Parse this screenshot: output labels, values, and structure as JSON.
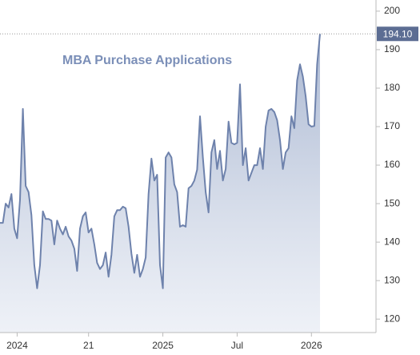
{
  "chart_data": {
    "type": "area",
    "title": "MBA Purchase Applications",
    "color": "#6e82ac",
    "values": [
      145,
      145,
      150,
      149,
      152.5,
      143.5,
      141,
      151,
      174.6,
      154.6,
      153,
      147,
      134,
      128,
      134,
      148,
      146,
      146,
      145.6,
      139.4,
      145.6,
      143.5,
      142,
      144,
      141.5,
      140.4,
      138.3,
      132.5,
      143.5,
      146.7,
      147.7,
      142.5,
      143.5,
      139.4,
      134.6,
      133,
      134,
      137.3,
      131,
      136.7,
      146.7,
      148.3,
      148.3,
      149.2,
      148.8,
      144,
      137,
      132,
      136.7,
      131,
      133,
      136,
      152.5,
      161.7,
      156,
      157.5,
      134,
      128,
      162,
      163.3,
      162,
      155,
      153,
      144,
      144.4,
      144,
      154,
      154.6,
      156,
      158.8,
      172.7,
      162,
      153,
      147.7,
      163.3,
      166.5,
      159,
      163.7,
      156,
      159,
      171.3,
      165.8,
      165.4,
      165.8,
      181,
      160,
      164.4,
      156,
      158,
      160,
      160,
      164.4,
      159,
      170,
      174.2,
      174.6,
      173.8,
      171.7,
      166.5,
      159,
      163.3,
      164.4,
      172.7,
      169.6,
      182,
      186.2,
      183,
      177.9,
      170.6,
      170,
      170.2,
      186.2,
      194.1
    ],
    "value_labels": [
      null,
      null,
      null,
      null,
      null,
      null,
      null,
      null,
      null,
      null,
      null,
      null,
      null,
      null,
      null,
      null,
      null,
      null,
      null,
      null,
      null,
      null,
      null,
      null,
      null,
      null,
      null,
      null,
      null,
      null,
      null,
      null,
      null,
      null,
      null,
      null,
      null,
      null,
      null,
      null,
      null,
      null,
      null,
      null,
      null,
      null,
      null,
      null,
      null,
      null,
      null,
      null,
      null,
      null,
      null,
      null,
      null,
      null,
      null,
      null,
      null,
      null,
      null,
      null,
      null,
      null,
      null,
      null,
      null,
      null,
      null,
      null,
      null,
      null,
      null,
      null,
      null,
      null,
      null,
      null,
      null,
      null,
      null,
      null,
      null,
      null,
      null,
      null,
      null,
      null,
      null,
      null,
      null,
      null,
      null,
      null,
      null,
      null,
      null,
      null,
      null,
      null,
      null,
      null,
      null,
      null,
      null,
      null,
      null,
      null,
      null,
      null,
      "194.10"
    ],
    "xlim": [
      0,
      131.6
    ],
    "xticks": [
      {
        "value": 6,
        "label": "2024"
      },
      {
        "value": 31,
        "label": "21"
      },
      {
        "value": 57,
        "label": "2025"
      },
      {
        "value": 83,
        "label": "Jul"
      },
      {
        "value": 109,
        "label": "2026"
      }
    ],
    "ylim": [
      116.5,
      202.9
    ],
    "yticks": [
      120,
      130,
      140,
      150,
      160,
      170,
      180,
      190,
      200
    ]
  }
}
